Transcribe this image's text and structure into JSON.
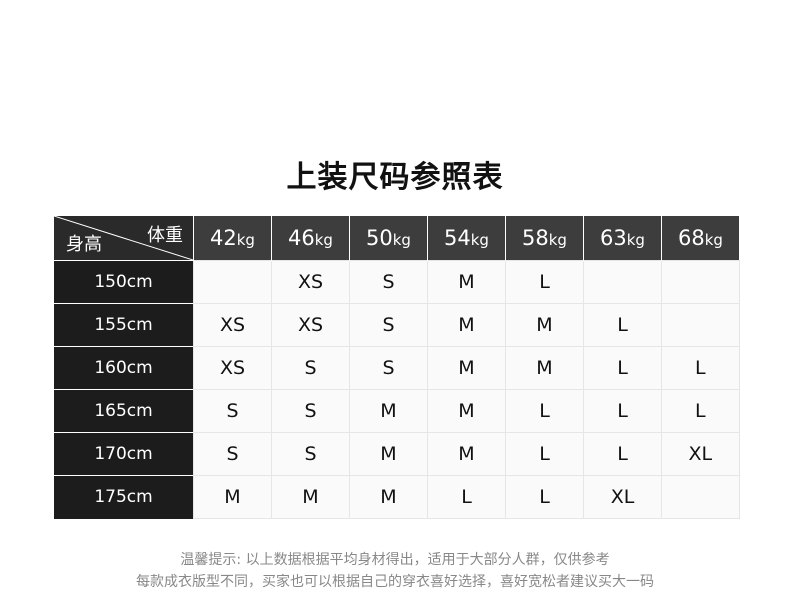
{
  "title": "上装尺码参照表",
  "table": {
    "corner_weight": "体重",
    "corner_height": "身高",
    "weights": [
      {
        "num": "42",
        "unit": "kg"
      },
      {
        "num": "46",
        "unit": "kg"
      },
      {
        "num": "50",
        "unit": "kg"
      },
      {
        "num": "54",
        "unit": "kg"
      },
      {
        "num": "58",
        "unit": "kg"
      },
      {
        "num": "63",
        "unit": "kg"
      },
      {
        "num": "68",
        "unit": "kg"
      }
    ],
    "rows": [
      {
        "height": "150cm",
        "sizes": [
          "",
          "XS",
          "S",
          "M",
          "L",
          "",
          ""
        ]
      },
      {
        "height": "155cm",
        "sizes": [
          "XS",
          "XS",
          "S",
          "M",
          "M",
          "L",
          ""
        ]
      },
      {
        "height": "160cm",
        "sizes": [
          "XS",
          "S",
          "S",
          "M",
          "M",
          "L",
          "L"
        ]
      },
      {
        "height": "165cm",
        "sizes": [
          "S",
          "S",
          "M",
          "M",
          "L",
          "L",
          "L"
        ]
      },
      {
        "height": "170cm",
        "sizes": [
          "S",
          "S",
          "M",
          "M",
          "L",
          "L",
          "XL"
        ]
      },
      {
        "height": "175cm",
        "sizes": [
          "M",
          "M",
          "M",
          "L",
          "L",
          "XL",
          ""
        ]
      }
    ]
  },
  "notes": [
    "温馨提示: 以上数据根据平均身材得出，适用于大部分人群，仅供参考",
    "每款成衣版型不同，买家也可以根据自己的穿衣喜好选择，喜好宽松者建议买大一码"
  ]
}
